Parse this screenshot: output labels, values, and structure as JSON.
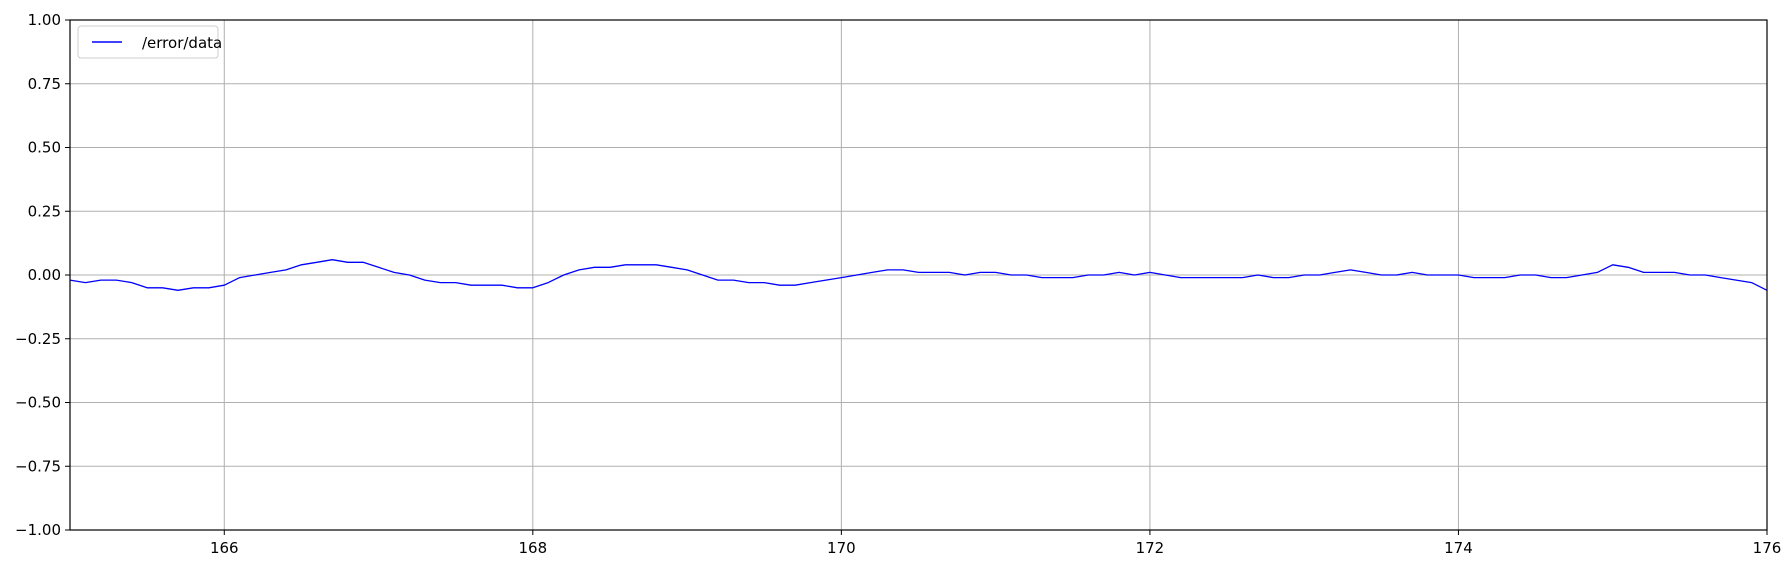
{
  "chart_data": {
    "type": "line",
    "title": "",
    "xlabel": "",
    "ylabel": "",
    "xlim": [
      165.0,
      176.0
    ],
    "ylim": [
      -1.0,
      1.0
    ],
    "x_ticks": [
      166,
      168,
      170,
      172,
      174,
      176
    ],
    "x_tick_labels": [
      "166",
      "168",
      "170",
      "172",
      "174",
      "176"
    ],
    "y_ticks": [
      1.0,
      0.75,
      0.5,
      0.25,
      0.0,
      -0.25,
      -0.5,
      -0.75,
      -1.0
    ],
    "y_tick_labels": [
      "1.00",
      "0.75",
      "0.50",
      "0.25",
      "0.00",
      "−0.25",
      "−0.50",
      "−0.75",
      "−1.00"
    ],
    "grid": true,
    "legend_position": "top-left",
    "series": [
      {
        "name": "/error/data",
        "color": "#0000ff",
        "x": [
          165.0,
          165.1,
          165.2,
          165.3,
          165.4,
          165.5,
          165.6,
          165.7,
          165.8,
          165.9,
          166.0,
          166.1,
          166.2,
          166.3,
          166.4,
          166.5,
          166.6,
          166.7,
          166.8,
          166.9,
          167.0,
          167.1,
          167.2,
          167.3,
          167.4,
          167.5,
          167.6,
          167.7,
          167.8,
          167.9,
          168.0,
          168.1,
          168.2,
          168.3,
          168.4,
          168.5,
          168.6,
          168.7,
          168.8,
          168.9,
          169.0,
          169.1,
          169.2,
          169.3,
          169.4,
          169.5,
          169.6,
          169.7,
          169.8,
          169.9,
          170.0,
          170.1,
          170.2,
          170.3,
          170.4,
          170.5,
          170.6,
          170.7,
          170.8,
          170.9,
          171.0,
          171.1,
          171.2,
          171.3,
          171.4,
          171.5,
          171.6,
          171.7,
          171.8,
          171.9,
          172.0,
          172.1,
          172.2,
          172.3,
          172.4,
          172.5,
          172.6,
          172.7,
          172.8,
          172.9,
          173.0,
          173.1,
          173.2,
          173.3,
          173.4,
          173.5,
          173.6,
          173.7,
          173.8,
          173.9,
          174.0,
          174.1,
          174.2,
          174.3,
          174.4,
          174.5,
          174.6,
          174.7,
          174.8,
          174.9,
          175.0,
          175.1,
          175.2,
          175.3,
          175.4,
          175.5,
          175.6,
          175.7,
          175.8,
          175.9,
          176.0
        ],
        "values": [
          -0.02,
          -0.03,
          -0.02,
          -0.02,
          -0.03,
          -0.05,
          -0.05,
          -0.06,
          -0.05,
          -0.05,
          -0.04,
          -0.01,
          0.0,
          0.01,
          0.02,
          0.04,
          0.05,
          0.06,
          0.05,
          0.05,
          0.03,
          0.01,
          0.0,
          -0.02,
          -0.03,
          -0.03,
          -0.04,
          -0.04,
          -0.04,
          -0.05,
          -0.05,
          -0.03,
          0.0,
          0.02,
          0.03,
          0.03,
          0.04,
          0.04,
          0.04,
          0.03,
          0.02,
          0.0,
          -0.02,
          -0.02,
          -0.03,
          -0.03,
          -0.04,
          -0.04,
          -0.03,
          -0.02,
          -0.01,
          0.0,
          0.01,
          0.02,
          0.02,
          0.01,
          0.01,
          0.01,
          0.0,
          0.01,
          0.01,
          0.0,
          0.0,
          -0.01,
          -0.01,
          -0.01,
          0.0,
          0.0,
          0.01,
          0.0,
          0.01,
          0.0,
          -0.01,
          -0.01,
          -0.01,
          -0.01,
          -0.01,
          0.0,
          -0.01,
          -0.01,
          0.0,
          0.0,
          0.01,
          0.02,
          0.01,
          0.0,
          0.0,
          0.01,
          0.0,
          0.0,
          0.0,
          -0.01,
          -0.01,
          -0.01,
          0.0,
          0.0,
          -0.01,
          -0.01,
          0.0,
          0.01,
          0.04,
          0.03,
          0.01,
          0.01,
          0.01,
          0.0,
          0.0,
          -0.01,
          -0.02,
          -0.03,
          -0.06
        ]
      }
    ]
  }
}
